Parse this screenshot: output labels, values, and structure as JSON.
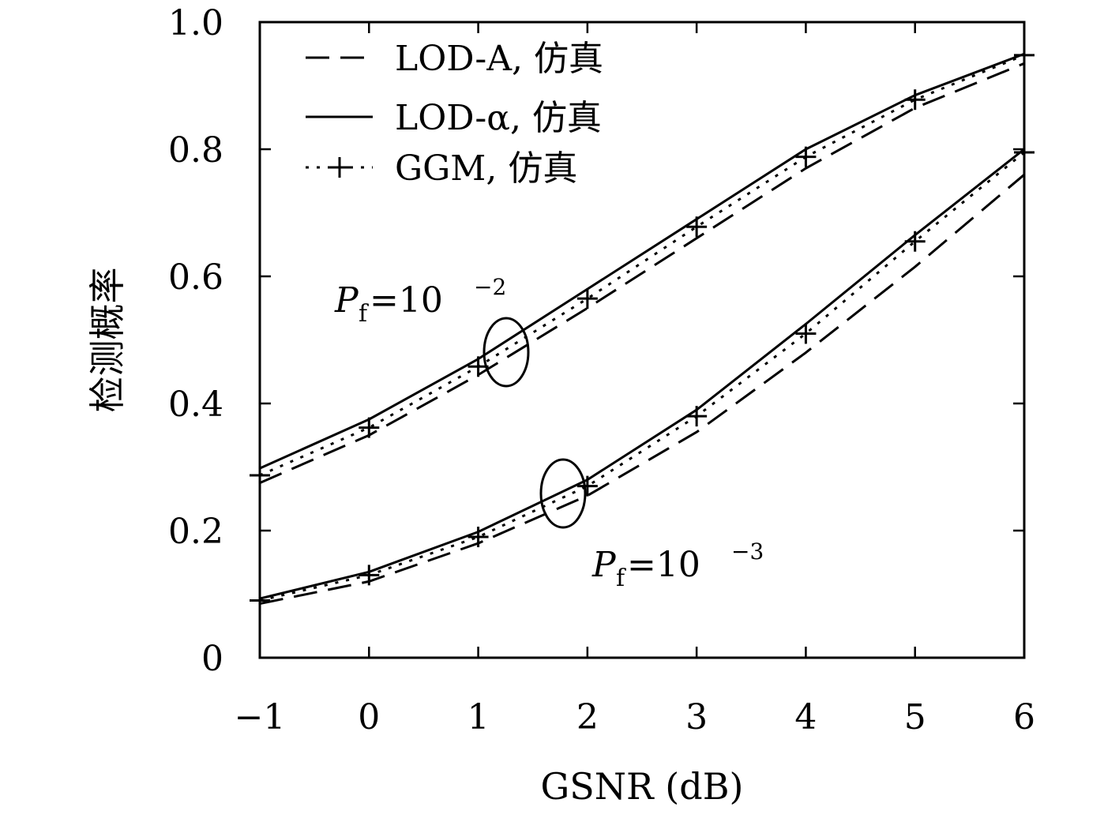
{
  "chart_data": {
    "type": "line",
    "xlabel": "GSNR (dB)",
    "ylabel": "检测概率",
    "xlim": [
      -1,
      6
    ],
    "ylim": [
      0,
      1.0
    ],
    "x": [
      -1,
      0,
      1,
      2,
      3,
      4,
      5,
      6
    ],
    "x_ticks": [
      "−1",
      "0",
      "1",
      "2",
      "3",
      "4",
      "5",
      "6"
    ],
    "y_ticks": [
      {
        "value": 0,
        "label": "0"
      },
      {
        "value": 0.2,
        "label": "0.2"
      },
      {
        "value": 0.4,
        "label": "0.4"
      },
      {
        "value": 0.6,
        "label": "0.6"
      },
      {
        "value": 0.8,
        "label": "0.8"
      },
      {
        "value": 1.0,
        "label": "1.0"
      }
    ],
    "grid": false,
    "legend_position": "top-left",
    "legend": [
      {
        "label": "LOD-A, 仿真",
        "style": "dashed"
      },
      {
        "label": "LOD-α, 仿真",
        "style": "solid"
      },
      {
        "label": "GGM, 仿真",
        "style": "dotted-plus"
      }
    ],
    "groups": [
      {
        "annotation": {
          "p": "P",
          "sub": "f",
          "eq": "=10",
          "sup": "−2"
        },
        "series": [
          {
            "style": "dashed",
            "values": [
              0.275,
              0.35,
              0.445,
              0.55,
              0.66,
              0.77,
              0.865,
              0.935
            ]
          },
          {
            "style": "solid",
            "values": [
              0.298,
              0.375,
              0.47,
              0.58,
              0.69,
              0.8,
              0.885,
              0.95
            ]
          },
          {
            "style": "dotted-plus",
            "values": [
              0.287,
              0.362,
              0.458,
              0.565,
              0.678,
              0.788,
              0.878,
              0.948
            ]
          }
        ]
      },
      {
        "annotation": {
          "p": "P",
          "sub": "f",
          "eq": "=10",
          "sup": "−3"
        },
        "series": [
          {
            "style": "dashed",
            "values": [
              0.085,
              0.12,
              0.18,
              0.255,
              0.355,
              0.48,
              0.615,
              0.76
            ]
          },
          {
            "style": "solid",
            "values": [
              0.093,
              0.135,
              0.198,
              0.28,
              0.39,
              0.525,
              0.665,
              0.8
            ]
          },
          {
            "style": "dotted-plus",
            "values": [
              0.09,
              0.13,
              0.19,
              0.27,
              0.38,
              0.51,
              0.655,
              0.795
            ]
          }
        ]
      }
    ]
  }
}
